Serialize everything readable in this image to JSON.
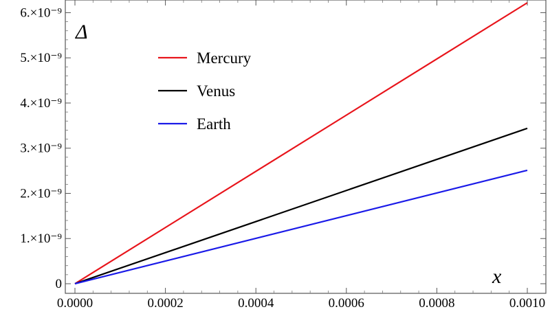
{
  "chart_data": {
    "type": "line",
    "title": "",
    "xlabel": "x",
    "ylabel": "Δ",
    "xlim": [
      0,
      0.001
    ],
    "ylim": [
      0,
      6.25e-09
    ],
    "grid": false,
    "legend_position": "upper-left",
    "x_ticks": [
      {
        "value": 0.0,
        "label": "0.0000"
      },
      {
        "value": 0.0002,
        "label": "0.0002"
      },
      {
        "value": 0.0004,
        "label": "0.0004"
      },
      {
        "value": 0.0006,
        "label": "0.0006"
      },
      {
        "value": 0.0008,
        "label": "0.0008"
      },
      {
        "value": 0.001,
        "label": "0.0010"
      }
    ],
    "y_ticks": [
      {
        "value": 0,
        "label": "0"
      },
      {
        "value": 1e-09,
        "label": "1.×10⁻⁹"
      },
      {
        "value": 2e-09,
        "label": "2.×10⁻⁹"
      },
      {
        "value": 3e-09,
        "label": "3.×10⁻⁹"
      },
      {
        "value": 4e-09,
        "label": "4.×10⁻⁹"
      },
      {
        "value": 5e-09,
        "label": "5.×10⁻⁹"
      },
      {
        "value": 6e-09,
        "label": "6.×10⁻⁹"
      }
    ],
    "series": [
      {
        "name": "Mercury",
        "color": "#e8141b",
        "x": [
          0,
          0.001
        ],
        "y": [
          0,
          6.22e-09
        ]
      },
      {
        "name": "Venus",
        "color": "#000000",
        "x": [
          0,
          0.001
        ],
        "y": [
          0,
          3.44e-09
        ]
      },
      {
        "name": "Earth",
        "color": "#1a1ae8",
        "x": [
          0,
          0.001
        ],
        "y": [
          0,
          2.51e-09
        ]
      }
    ]
  }
}
